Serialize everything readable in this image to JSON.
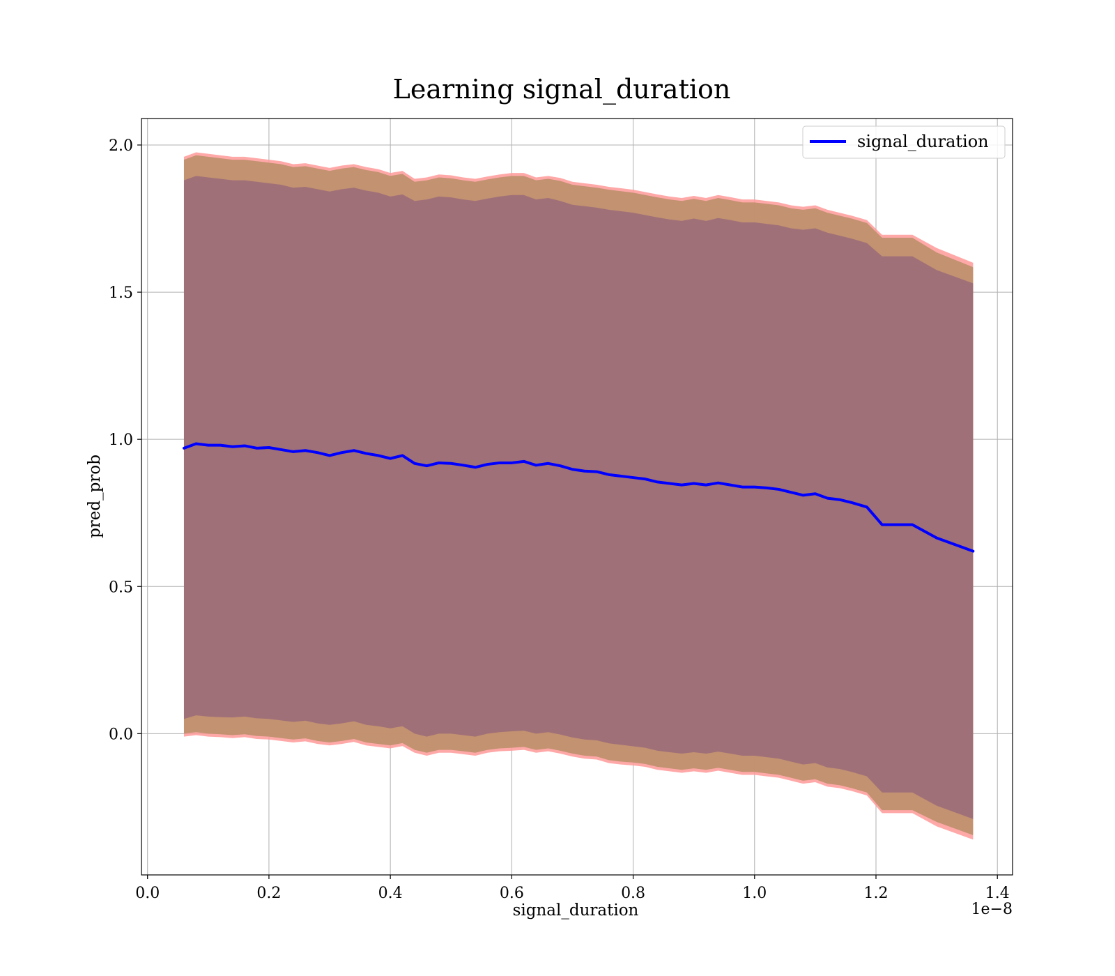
{
  "chart_data": {
    "type": "line",
    "title": "Learning signal_duration",
    "xlabel": "signal_duration",
    "ylabel": "pred_prob",
    "x_offset_label": "1e−8",
    "xlim": [
      -0.01,
      1.425
    ],
    "ylim": [
      -0.48,
      2.09
    ],
    "xticks": [
      0.0,
      0.2,
      0.4,
      0.6,
      0.8,
      1.0,
      1.2,
      1.4
    ],
    "xtick_labels": [
      "0.0",
      "0.2",
      "0.4",
      "0.6",
      "0.8",
      "1.0",
      "1.2",
      "1.4"
    ],
    "yticks": [
      0.0,
      0.5,
      1.0,
      1.5,
      2.0
    ],
    "ytick_labels": [
      "0.0",
      "0.5",
      "1.0",
      "1.5",
      "2.0"
    ],
    "grid": true,
    "legend_position": "top-right",
    "colors": {
      "line": "#0000ff",
      "outer_band": "#ff9999",
      "middle_band": "#c0906e",
      "inner_band": "#a07078",
      "grid": "#b0b0b0"
    },
    "series": [
      {
        "name": "signal_duration",
        "x": [
          0.06,
          0.08,
          0.1,
          0.12,
          0.14,
          0.16,
          0.18,
          0.2,
          0.22,
          0.24,
          0.26,
          0.28,
          0.3,
          0.32,
          0.34,
          0.36,
          0.38,
          0.4,
          0.42,
          0.44,
          0.46,
          0.48,
          0.5,
          0.52,
          0.54,
          0.56,
          0.58,
          0.6,
          0.62,
          0.64,
          0.66,
          0.68,
          0.7,
          0.72,
          0.74,
          0.76,
          0.78,
          0.8,
          0.82,
          0.84,
          0.86,
          0.88,
          0.9,
          0.92,
          0.94,
          0.96,
          0.98,
          1.0,
          1.02,
          1.04,
          1.06,
          1.08,
          1.1,
          1.12,
          1.14,
          1.16,
          1.185,
          1.21,
          1.26,
          1.3,
          1.36
        ],
        "y": [
          0.97,
          0.985,
          0.98,
          0.98,
          0.975,
          0.978,
          0.97,
          0.972,
          0.965,
          0.958,
          0.962,
          0.955,
          0.945,
          0.955,
          0.962,
          0.952,
          0.945,
          0.935,
          0.945,
          0.918,
          0.91,
          0.92,
          0.918,
          0.912,
          0.905,
          0.915,
          0.92,
          0.92,
          0.925,
          0.912,
          0.918,
          0.91,
          0.898,
          0.892,
          0.89,
          0.88,
          0.875,
          0.87,
          0.865,
          0.855,
          0.85,
          0.845,
          0.85,
          0.845,
          0.852,
          0.845,
          0.838,
          0.838,
          0.835,
          0.83,
          0.82,
          0.81,
          0.815,
          0.8,
          0.795,
          0.785,
          0.77,
          0.71,
          0.71,
          0.665,
          0.62
        ]
      }
    ],
    "bands": [
      {
        "name": "outer",
        "upper": [
          1.96,
          1.975,
          1.97,
          1.965,
          1.96,
          1.96,
          1.955,
          1.95,
          1.945,
          1.935,
          1.938,
          1.93,
          1.922,
          1.93,
          1.935,
          1.925,
          1.918,
          1.905,
          1.912,
          1.885,
          1.89,
          1.9,
          1.897,
          1.89,
          1.885,
          1.893,
          1.9,
          1.905,
          1.905,
          1.89,
          1.895,
          1.888,
          1.875,
          1.87,
          1.865,
          1.858,
          1.853,
          1.848,
          1.84,
          1.832,
          1.825,
          1.82,
          1.827,
          1.82,
          1.83,
          1.823,
          1.815,
          1.815,
          1.81,
          1.805,
          1.795,
          1.79,
          1.795,
          1.78,
          1.77,
          1.76,
          1.745,
          1.695,
          1.695,
          1.65,
          1.6
        ],
        "lower": [
          -0.01,
          -0.005,
          -0.01,
          -0.012,
          -0.015,
          -0.012,
          -0.018,
          -0.02,
          -0.025,
          -0.03,
          -0.026,
          -0.035,
          -0.04,
          -0.035,
          -0.028,
          -0.04,
          -0.045,
          -0.05,
          -0.042,
          -0.065,
          -0.075,
          -0.065,
          -0.065,
          -0.07,
          -0.075,
          -0.065,
          -0.06,
          -0.058,
          -0.055,
          -0.065,
          -0.06,
          -0.068,
          -0.078,
          -0.085,
          -0.088,
          -0.1,
          -0.105,
          -0.108,
          -0.113,
          -0.123,
          -0.128,
          -0.133,
          -0.128,
          -0.133,
          -0.126,
          -0.133,
          -0.14,
          -0.14,
          -0.145,
          -0.15,
          -0.16,
          -0.17,
          -0.165,
          -0.18,
          -0.185,
          -0.195,
          -0.21,
          -0.27,
          -0.27,
          -0.315,
          -0.36
        ]
      },
      {
        "name": "middle",
        "upper": [
          1.95,
          1.965,
          1.96,
          1.955,
          1.95,
          1.95,
          1.945,
          1.94,
          1.935,
          1.925,
          1.928,
          1.92,
          1.912,
          1.92,
          1.925,
          1.915,
          1.908,
          1.895,
          1.902,
          1.875,
          1.88,
          1.89,
          1.887,
          1.88,
          1.875,
          1.883,
          1.89,
          1.895,
          1.895,
          1.88,
          1.885,
          1.878,
          1.865,
          1.86,
          1.855,
          1.848,
          1.843,
          1.838,
          1.83,
          1.822,
          1.815,
          1.81,
          1.817,
          1.81,
          1.82,
          1.813,
          1.805,
          1.805,
          1.8,
          1.795,
          1.785,
          1.78,
          1.785,
          1.77,
          1.76,
          1.75,
          1.735,
          1.685,
          1.685,
          1.635,
          1.585
        ],
        "lower": [
          0.0,
          0.005,
          0.0,
          -0.002,
          -0.005,
          -0.002,
          -0.008,
          -0.01,
          -0.015,
          -0.02,
          -0.016,
          -0.025,
          -0.03,
          -0.025,
          -0.018,
          -0.03,
          -0.035,
          -0.04,
          -0.032,
          -0.055,
          -0.065,
          -0.055,
          -0.055,
          -0.06,
          -0.065,
          -0.055,
          -0.05,
          -0.048,
          -0.045,
          -0.055,
          -0.05,
          -0.058,
          -0.068,
          -0.075,
          -0.078,
          -0.09,
          -0.095,
          -0.098,
          -0.103,
          -0.113,
          -0.118,
          -0.123,
          -0.118,
          -0.123,
          -0.116,
          -0.123,
          -0.13,
          -0.13,
          -0.135,
          -0.14,
          -0.15,
          -0.16,
          -0.155,
          -0.17,
          -0.175,
          -0.185,
          -0.2,
          -0.26,
          -0.26,
          -0.3,
          -0.345
        ]
      },
      {
        "name": "inner",
        "upper": [
          1.88,
          1.895,
          1.89,
          1.885,
          1.88,
          1.88,
          1.875,
          1.87,
          1.865,
          1.855,
          1.858,
          1.85,
          1.842,
          1.85,
          1.855,
          1.845,
          1.838,
          1.825,
          1.832,
          1.81,
          1.815,
          1.825,
          1.822,
          1.815,
          1.81,
          1.818,
          1.825,
          1.83,
          1.83,
          1.815,
          1.82,
          1.81,
          1.797,
          1.792,
          1.787,
          1.78,
          1.775,
          1.77,
          1.762,
          1.754,
          1.747,
          1.742,
          1.75,
          1.742,
          1.752,
          1.745,
          1.737,
          1.737,
          1.732,
          1.727,
          1.717,
          1.712,
          1.717,
          1.702,
          1.692,
          1.682,
          1.667,
          1.622,
          1.622,
          1.575,
          1.53
        ],
        "lower": [
          0.05,
          0.062,
          0.058,
          0.056,
          0.055,
          0.058,
          0.052,
          0.05,
          0.045,
          0.04,
          0.044,
          0.035,
          0.03,
          0.035,
          0.042,
          0.03,
          0.025,
          0.018,
          0.025,
          0.0,
          -0.01,
          0.0,
          0.0,
          -0.005,
          -0.01,
          0.0,
          0.005,
          0.008,
          0.01,
          0.0,
          0.005,
          -0.003,
          -0.013,
          -0.02,
          -0.023,
          -0.033,
          -0.038,
          -0.043,
          -0.048,
          -0.058,
          -0.063,
          -0.068,
          -0.063,
          -0.068,
          -0.061,
          -0.068,
          -0.075,
          -0.075,
          -0.08,
          -0.085,
          -0.095,
          -0.105,
          -0.1,
          -0.115,
          -0.12,
          -0.13,
          -0.145,
          -0.2,
          -0.2,
          -0.245,
          -0.29
        ]
      }
    ]
  }
}
